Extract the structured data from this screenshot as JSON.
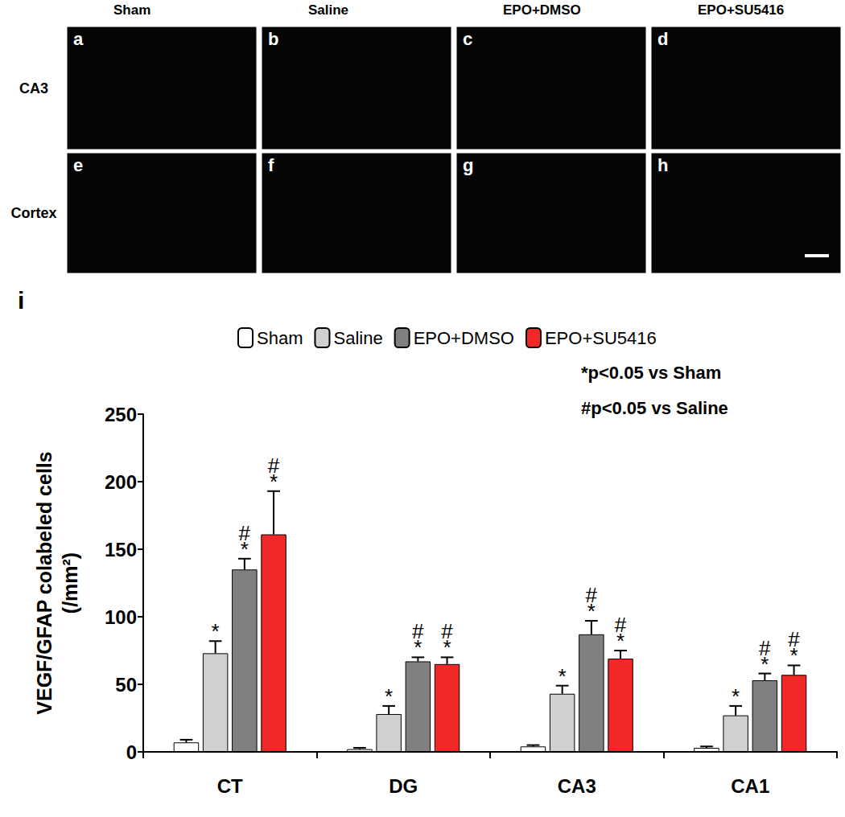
{
  "image_panels": {
    "columns": [
      "Sham",
      "Saline",
      "EPO+DMSO",
      "EPO+SU5416"
    ],
    "rows": [
      "CA3",
      "Cortex"
    ],
    "letters": [
      [
        "a",
        "b",
        "c",
        "d"
      ],
      [
        "e",
        "f",
        "g",
        "h"
      ]
    ]
  },
  "chart_data": {
    "type": "bar",
    "title": "i",
    "categories": [
      "CT",
      "DG",
      "CA3",
      "CA1"
    ],
    "ylabel": "VEGF/GFAP colabeled cells\n(/mm²)",
    "ylim": [
      0,
      250
    ],
    "yticks": [
      0,
      50,
      100,
      150,
      200,
      250
    ],
    "grid": false,
    "legend": "top",
    "annotations": [
      "*p<0.05 vs Sham",
      "#p<0.05 vs Saline"
    ],
    "series": [
      {
        "name": "Sham",
        "color": "#ffffff",
        "values": [
          7,
          2,
          4,
          3
        ],
        "errors": [
          2,
          1,
          1,
          1
        ],
        "significance": [
          null,
          null,
          null,
          null
        ]
      },
      {
        "name": "Saline",
        "color": "#d0d0d0",
        "values": [
          73,
          28,
          43,
          27
        ],
        "errors": [
          9,
          6,
          6,
          7
        ],
        "significance": [
          [
            "*"
          ],
          [
            "*"
          ],
          [
            "*"
          ],
          [
            "*"
          ]
        ]
      },
      {
        "name": "EPO+DMSO",
        "color": "#808080",
        "values": [
          135,
          67,
          87,
          53
        ],
        "errors": [
          8,
          3,
          10,
          5
        ],
        "significance": [
          [
            "#",
            "*"
          ],
          [
            "#",
            "*"
          ],
          [
            "#",
            "*"
          ],
          [
            "#",
            "*"
          ]
        ]
      },
      {
        "name": "EPO+SU5416",
        "color": "#f02828",
        "values": [
          161,
          65,
          69,
          57
        ],
        "errors": [
          32,
          5,
          6,
          7
        ],
        "significance": [
          [
            "#",
            "*"
          ],
          [
            "#",
            "*"
          ],
          [
            "#",
            "*"
          ],
          [
            "#",
            "*"
          ]
        ]
      }
    ]
  }
}
